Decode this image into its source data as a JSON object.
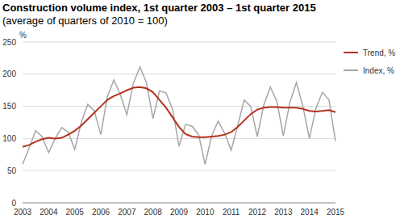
{
  "chart_data": {
    "type": "line",
    "title": "Construction volume index, 1st quarter 2003 – 1st quarter 2015",
    "subtitle": "(average of quarters of 2010 = 100)",
    "y_label": "%",
    "categories": [
      "2003",
      null,
      null,
      null,
      "2004",
      null,
      null,
      null,
      "2005",
      null,
      null,
      null,
      "2006",
      null,
      null,
      null,
      "2007",
      null,
      null,
      null,
      "2008",
      null,
      null,
      null,
      "2009",
      null,
      null,
      null,
      "2010",
      null,
      null,
      null,
      "2011",
      null,
      null,
      null,
      "2012",
      null,
      null,
      null,
      "2013",
      null,
      null,
      null,
      "2014",
      null,
      null,
      null,
      "2015"
    ],
    "series": [
      {
        "name": "Trend, %",
        "color": "#b5321f",
        "values": [
          87,
          90,
          95,
          99,
          101,
          100,
          101,
          106,
          112,
          120,
          130,
          140,
          150,
          160,
          166,
          170,
          175,
          179,
          180,
          178,
          172,
          160,
          148,
          133,
          118,
          107,
          103,
          102,
          102,
          103,
          104,
          106,
          110,
          118,
          128,
          138,
          145,
          148,
          149,
          149,
          148,
          148,
          148,
          146,
          143,
          142,
          143,
          144,
          141
        ]
      },
      {
        "name": "Index, %",
        "color": "#a6a6a6",
        "values": [
          60,
          85,
          112,
          103,
          78,
          100,
          117,
          110,
          83,
          125,
          153,
          143,
          106,
          165,
          191,
          168,
          137,
          186,
          211,
          187,
          131,
          174,
          171,
          146,
          88,
          122,
          119,
          106,
          60,
          104,
          127,
          108,
          82,
          120,
          160,
          150,
          103,
          152,
          180,
          158,
          104,
          156,
          187,
          150,
          100,
          147,
          172,
          160,
          96
        ]
      }
    ],
    "ylim": [
      0,
      250
    ],
    "yticks": [
      0,
      50,
      100,
      150,
      200,
      250
    ],
    "grid": true,
    "legend": "right"
  }
}
